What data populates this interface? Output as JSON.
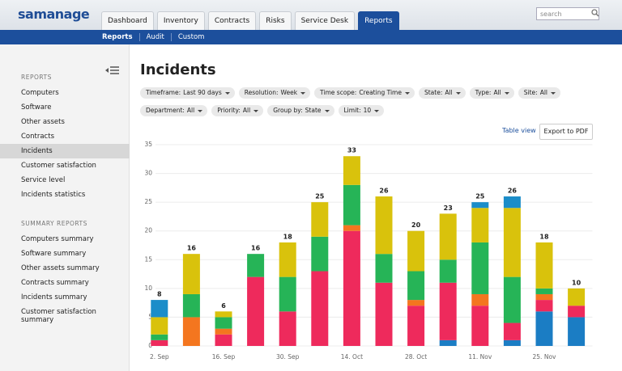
{
  "header": {
    "logo": "samanage",
    "tabs": [
      "Dashboard",
      "Inventory",
      "Contracts",
      "Risks",
      "Service Desk",
      "Reports"
    ],
    "active_tab": 5,
    "search_placeholder": "search"
  },
  "subnav": {
    "items": [
      "Reports",
      "Audit",
      "Custom"
    ],
    "active": 0
  },
  "sidebar": {
    "sections": [
      {
        "title": "REPORTS",
        "items": [
          "Computers",
          "Software",
          "Other assets",
          "Contracts",
          "Incidents",
          "Customer satisfaction",
          "Service level",
          "Incidents statistics"
        ]
      },
      {
        "title": "SUMMARY REPORTS",
        "items": [
          "Computers summary",
          "Software summary",
          "Other assets summary",
          "Contracts summary",
          "Incidents summary",
          "Customer satisfaction summary"
        ]
      }
    ],
    "active_item": "Incidents"
  },
  "page": {
    "title": "Incidents",
    "filter_rows": [
      [
        {
          "label": "Timeframe:",
          "value": "Last 90 days"
        },
        {
          "label": "Resolution:",
          "value": "Week"
        },
        {
          "label": "Time scope:",
          "value": "Creating Time"
        },
        {
          "label": "State:",
          "value": "All"
        },
        {
          "label": "Type:",
          "value": "All"
        },
        {
          "label": "Site:",
          "value": "All"
        }
      ],
      [
        {
          "label": "Department:",
          "value": "All"
        },
        {
          "label": "Priority:",
          "value": "All"
        },
        {
          "label": "Group by:",
          "value": "State"
        },
        {
          "label": "Limit:",
          "value": "10"
        }
      ]
    ],
    "table_view": "Table view",
    "export": "Export to PDF"
  },
  "chart_data": {
    "type": "stacked_bar",
    "categories": [
      "2. Sep",
      null,
      "16. Sep",
      null,
      "30. Sep",
      null,
      "14. Oct",
      null,
      "28. Oct",
      null,
      "11. Nov",
      null,
      "25. Nov",
      null
    ],
    "series": [
      {
        "color": "#1b7dc4",
        "values": [
          0,
          0,
          0,
          0,
          0,
          0,
          0,
          0,
          0,
          1,
          0,
          1,
          6,
          5
        ]
      },
      {
        "color": "#ee2a5c",
        "values": [
          1,
          0,
          2,
          12,
          6,
          13,
          20,
          11,
          7,
          10,
          7,
          3,
          2,
          2
        ]
      },
      {
        "color": "#f4761f",
        "values": [
          0,
          5,
          1,
          0,
          0,
          0,
          1,
          0,
          1,
          0,
          2,
          0,
          1,
          0
        ]
      },
      {
        "color": "#26b457",
        "values": [
          1,
          4,
          2,
          4,
          6,
          6,
          7,
          5,
          5,
          4,
          9,
          8,
          1,
          0
        ]
      },
      {
        "color": "#d9c20c",
        "values": [
          3,
          7,
          1,
          0,
          6,
          6,
          5,
          10,
          7,
          8,
          6,
          12,
          8,
          3
        ]
      },
      {
        "color": "#1b8dc9",
        "values": [
          3,
          0,
          0,
          0,
          0,
          0,
          0,
          0,
          0,
          0,
          1,
          2,
          0,
          0
        ]
      }
    ],
    "totals": [
      8,
      16,
      6,
      16,
      18,
      25,
      33,
      26,
      20,
      23,
      25,
      26,
      18,
      10
    ],
    "ylim": [
      0,
      35
    ],
    "yticks": [
      0,
      5,
      10,
      15,
      20,
      25,
      30,
      35
    ],
    "grid": true
  }
}
